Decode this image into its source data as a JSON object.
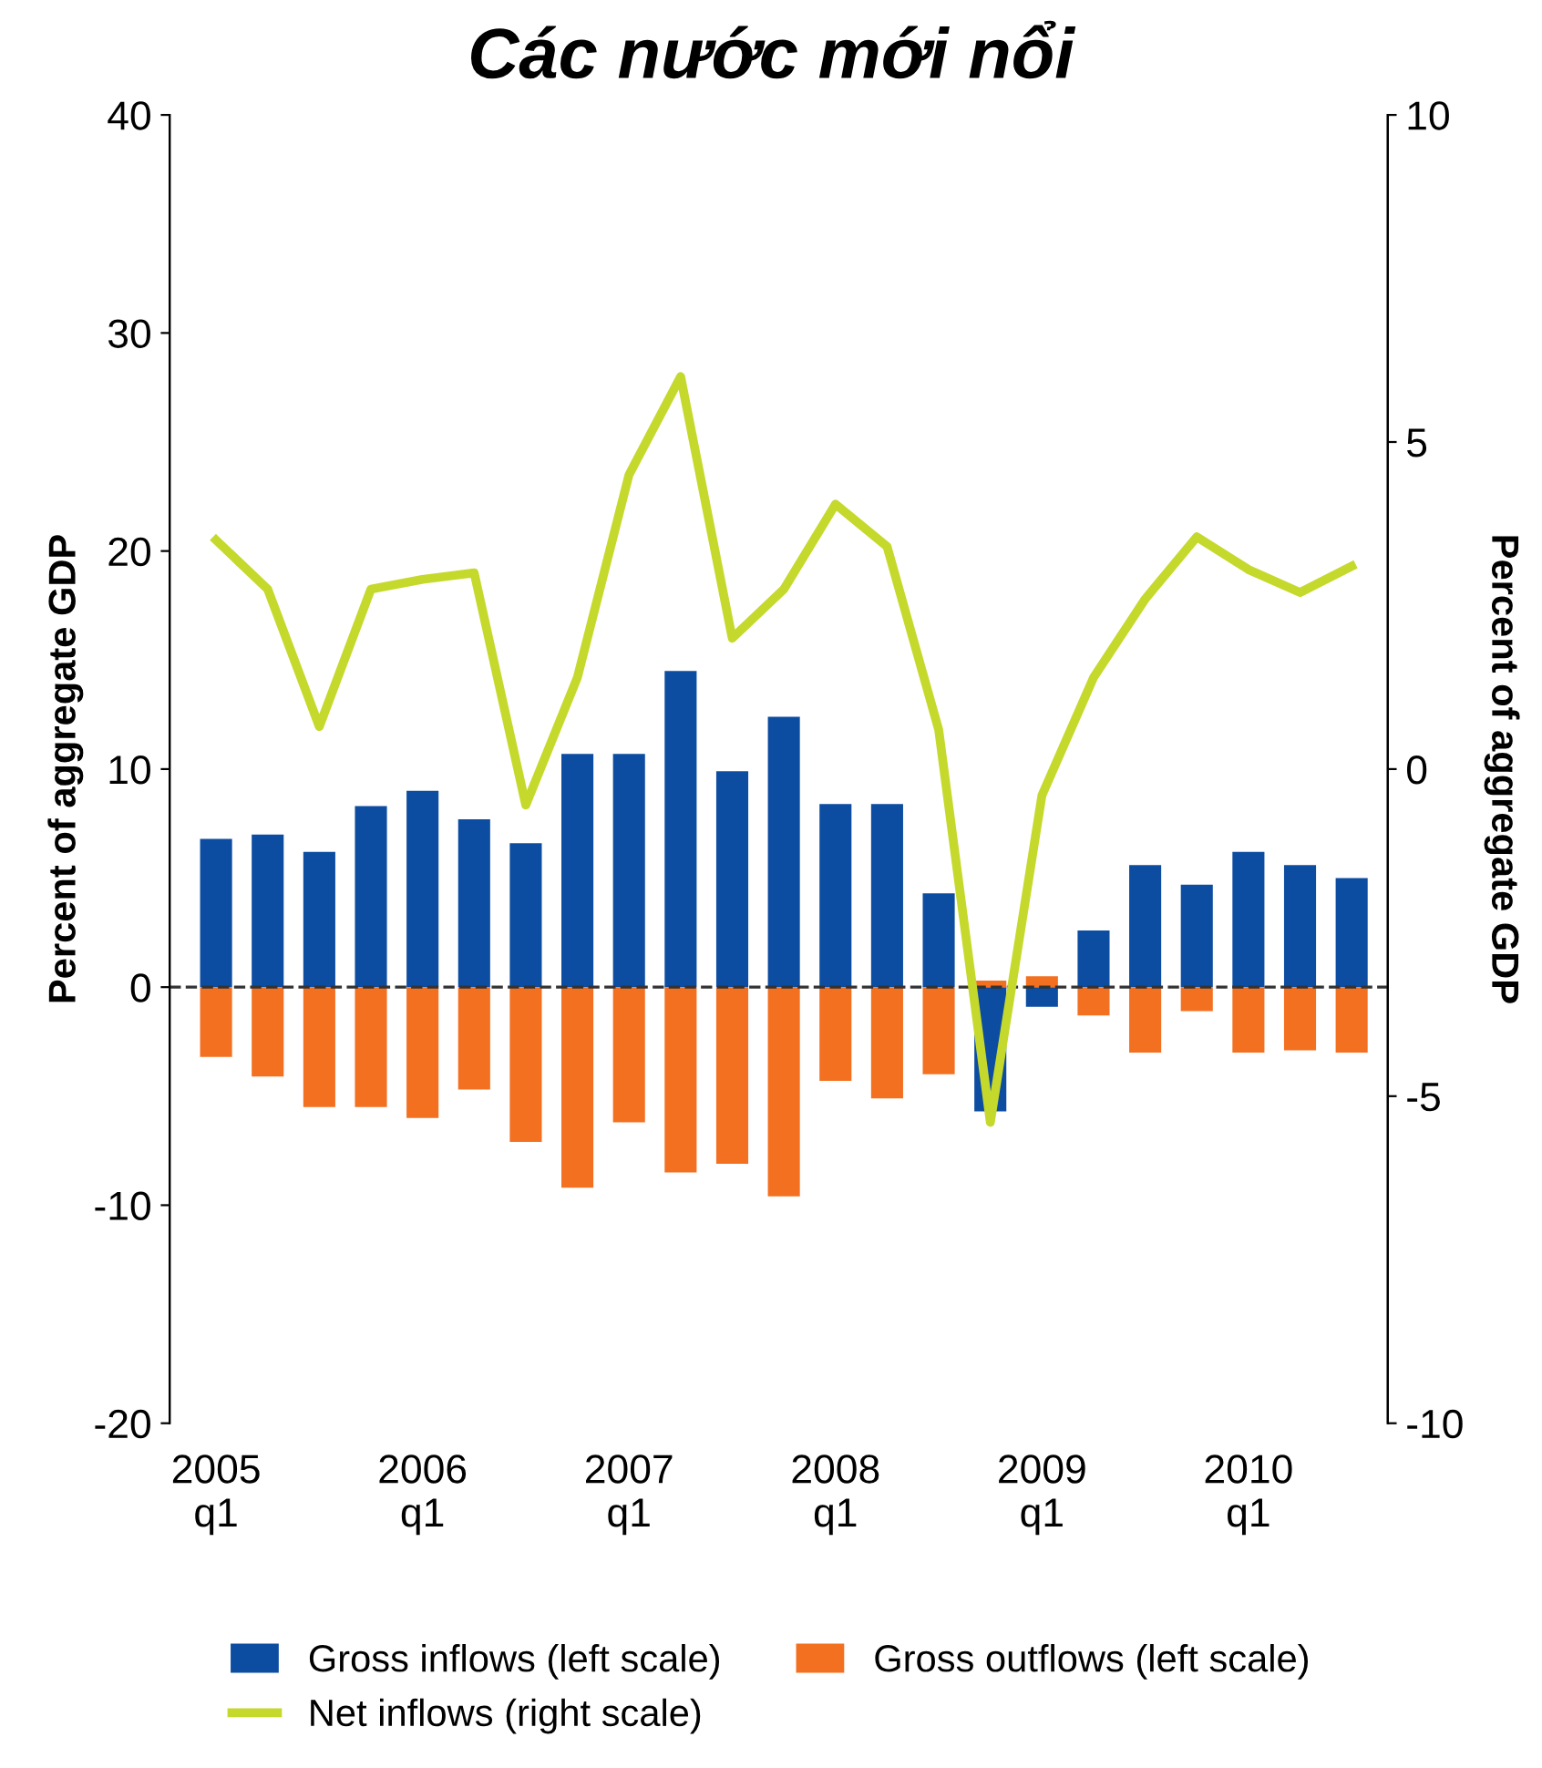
{
  "chart_data": {
    "type": "bar",
    "title": "Các nước mới nổi",
    "ylabel": "Percent of aggregate GDP",
    "y2label": "Percent of aggregate GDP",
    "categories": [
      "2005\nq1",
      null,
      null,
      null,
      "2006\nq1",
      null,
      null,
      null,
      "2007\nq1",
      null,
      null,
      null,
      "2008\nq1",
      null,
      null,
      null,
      "2009\nq1",
      null,
      null,
      null,
      "2010\nq1",
      null,
      null
    ],
    "series": [
      {
        "name": "Gross inflows (left scale)",
        "color": "#0d4da1",
        "values": [
          6.8,
          7.0,
          6.2,
          8.3,
          9.0,
          7.7,
          6.6,
          10.7,
          10.7,
          14.5,
          9.9,
          12.4,
          8.4,
          8.4,
          4.3,
          -5.7,
          -0.9,
          2.6,
          5.6,
          4.7,
          6.2,
          5.6,
          5.0
        ]
      },
      {
        "name": "Gross outflows (left scale)",
        "color": "#f37021",
        "values": [
          -3.2,
          -4.1,
          -5.5,
          -5.5,
          -6.0,
          -4.7,
          -7.1,
          -9.2,
          -6.2,
          -8.5,
          -8.1,
          -9.6,
          -4.3,
          -5.1,
          -4.0,
          0.3,
          0.5,
          -1.3,
          -3.0,
          -1.1,
          -3.0,
          -2.9,
          -3.0
        ]
      },
      {
        "name": "Net inflows (right scale)",
        "type": "line",
        "axis": "y2",
        "color": "#c5d92d",
        "values": [
          3.5,
          2.75,
          0.65,
          2.75,
          2.9,
          3.0,
          -0.55,
          1.4,
          4.5,
          6.0,
          2.0,
          2.75,
          4.05,
          3.4,
          0.6,
          -5.4,
          -0.4,
          1.4,
          2.6,
          3.55,
          3.05,
          2.7,
          3.1
        ]
      }
    ],
    "ylim": [
      -20,
      40
    ],
    "yticks": [
      -20,
      -10,
      0,
      10,
      20,
      30,
      40
    ],
    "y2lim": [
      -10,
      10
    ],
    "y2ticks": [
      -10,
      -5,
      0,
      5,
      10
    ],
    "ref_lines": [
      {
        "axis": "y",
        "value": 0,
        "label": null,
        "color": "#333333",
        "line_style": "dashed"
      }
    ],
    "stacked": true,
    "grid": false,
    "legend": "bottom",
    "marker": "none",
    "line_style": "solid"
  }
}
